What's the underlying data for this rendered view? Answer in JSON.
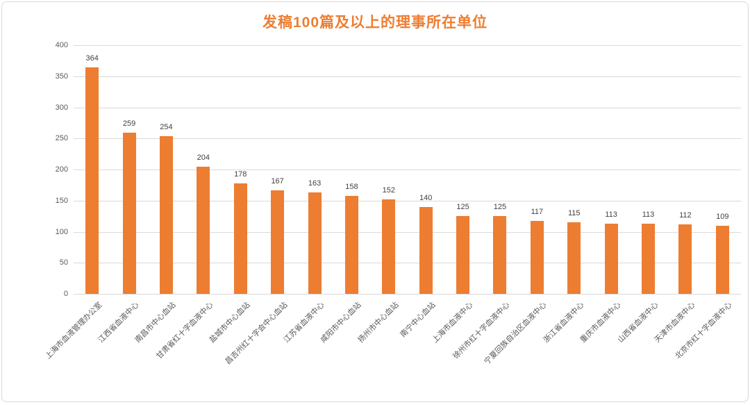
{
  "chart_data": {
    "type": "bar",
    "title": "发稿100篇及以上的理事所在单位",
    "categories": [
      "上海市血液管理办公室",
      "江西省血液中心",
      "南昌市中心血站",
      "甘肃省红十字血液中心",
      "盐城市中心血站",
      "昌吉州红十字会中心血站",
      "江苏省血液中心",
      "咸阳市中心血站",
      "扬州市中心血站",
      "南宁中心血站",
      "上海市血液中心",
      "徐州市红十字血液中心",
      "宁夏回族自治区血液中心",
      "浙江省血液中心",
      "重庆市血液中心",
      "山西省血液中心",
      "天津市血液中心",
      "北京市红十字血液中心"
    ],
    "values": [
      364,
      259,
      254,
      204,
      178,
      167,
      163,
      158,
      152,
      140,
      125,
      125,
      117,
      115,
      113,
      113,
      112,
      109
    ],
    "yticks": [
      0,
      50,
      100,
      150,
      200,
      250,
      300,
      350,
      400
    ],
    "ylim": [
      0,
      400
    ],
    "xlabel": "",
    "ylabel": "",
    "legend_position": "none",
    "grid": true,
    "data_labels": true,
    "colors": {
      "bar": "#ED7D31",
      "title": "#ED7D31",
      "gridline": "#D9D9D9",
      "axis_line": "#D9D9D9",
      "tick_label": "#595959",
      "data_label": "#404040",
      "category_label": "#595959",
      "card_border": "#D9D9D9",
      "background": "#FFFFFF"
    }
  }
}
